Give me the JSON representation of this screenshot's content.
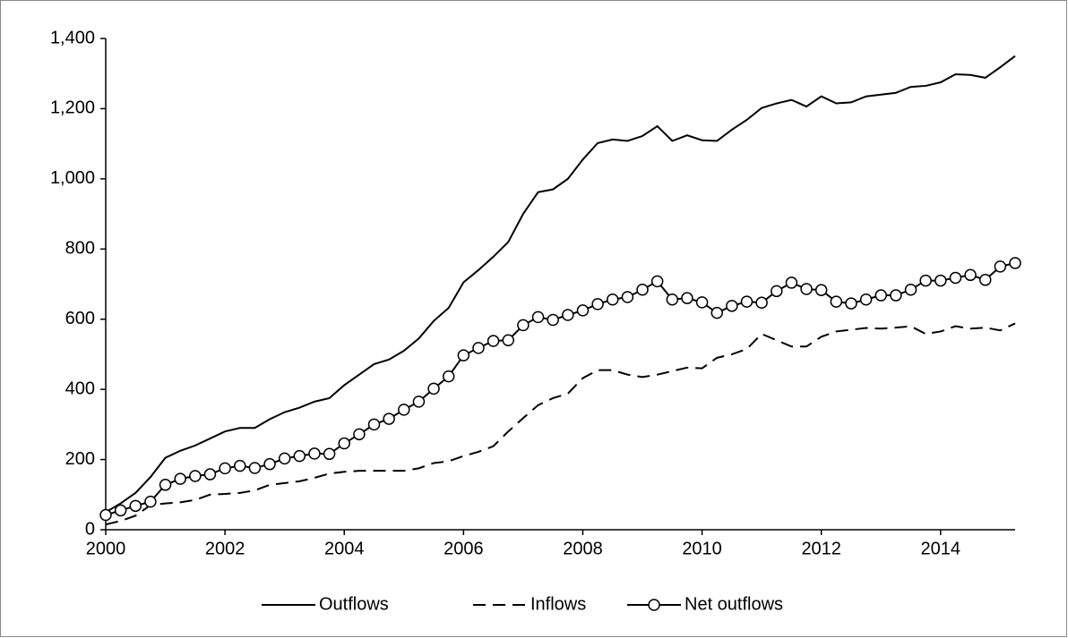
{
  "chart_data": {
    "type": "line",
    "x": [
      2000,
      2000.25,
      2000.5,
      2000.75,
      2001,
      2001.25,
      2001.5,
      2001.75,
      2002,
      2002.25,
      2002.5,
      2002.75,
      2003,
      2003.25,
      2003.5,
      2003.75,
      2004,
      2004.25,
      2004.5,
      2004.75,
      2005,
      2005.25,
      2005.5,
      2005.75,
      2006,
      2006.25,
      2006.5,
      2006.75,
      2007,
      2007.25,
      2007.5,
      2007.75,
      2008,
      2008.25,
      2008.5,
      2008.75,
      2009,
      2009.25,
      2009.5,
      2009.75,
      2010,
      2010.25,
      2010.5,
      2010.75,
      2011,
      2011.25,
      2011.5,
      2011.75,
      2012,
      2012.25,
      2012.5,
      2012.75,
      2013,
      2013.25,
      2013.5,
      2013.75,
      2014,
      2014.25,
      2014.5,
      2014.75,
      2015,
      2015.25
    ],
    "series": [
      {
        "name": "Outflows",
        "color": "#000000",
        "dash": "none",
        "marker": false,
        "values": [
          50,
          75,
          105,
          150,
          205,
          225,
          240,
          260,
          280,
          290,
          290,
          315,
          335,
          348,
          365,
          375,
          412,
          442,
          472,
          485,
          510,
          545,
          595,
          632,
          705,
          740,
          778,
          820,
          900,
          962,
          970,
          1000,
          1055,
          1102,
          1112,
          1108,
          1122,
          1150,
          1108,
          1124,
          1110,
          1108,
          1140,
          1168,
          1202,
          1215,
          1225,
          1206,
          1235,
          1215,
          1218,
          1235,
          1240,
          1245,
          1262,
          1265,
          1275,
          1298,
          1296,
          1288,
          1318,
          1350
        ]
      },
      {
        "name": "Inflows",
        "color": "#000000",
        "dash": "14 8",
        "marker": false,
        "values": [
          15,
          25,
          40,
          70,
          75,
          78,
          85,
          100,
          102,
          105,
          112,
          128,
          133,
          138,
          148,
          160,
          165,
          168,
          168,
          168,
          168,
          175,
          190,
          195,
          210,
          222,
          238,
          280,
          318,
          355,
          375,
          388,
          432,
          455,
          455,
          442,
          435,
          442,
          452,
          462,
          460,
          490,
          500,
          515,
          558,
          540,
          522,
          522,
          550,
          565,
          570,
          575,
          573,
          576,
          580,
          558,
          565,
          580,
          573,
          576,
          568,
          588
        ]
      },
      {
        "name": "Net outflows",
        "color": "#000000",
        "dash": "none",
        "marker": true,
        "values": [
          42,
          55,
          68,
          80,
          128,
          145,
          153,
          158,
          175,
          182,
          176,
          187,
          203,
          210,
          217,
          216,
          246,
          272,
          300,
          316,
          342,
          365,
          402,
          437,
          497,
          518,
          538,
          540,
          583,
          606,
          598,
          612,
          625,
          643,
          656,
          663,
          684,
          708,
          656,
          660,
          648,
          618,
          638,
          650,
          647,
          680,
          704,
          686,
          683,
          650,
          645,
          656,
          668,
          668,
          684,
          710,
          710,
          718,
          726,
          712,
          750,
          760
        ]
      }
    ],
    "xlim": [
      2000,
      2015.25
    ],
    "xticks": [
      2000,
      2002,
      2004,
      2006,
      2008,
      2010,
      2012,
      2014
    ],
    "ylim": [
      0,
      1400
    ],
    "yticks": [
      0,
      {
        "value": 200,
        "label": "200"
      },
      400,
      600,
      800,
      {
        "value": 1000,
        "label": "1,000"
      },
      {
        "value": 1200,
        "label": "1,200"
      },
      {
        "value": 1400,
        "label": "1,400"
      }
    ],
    "legend": "bottom"
  }
}
